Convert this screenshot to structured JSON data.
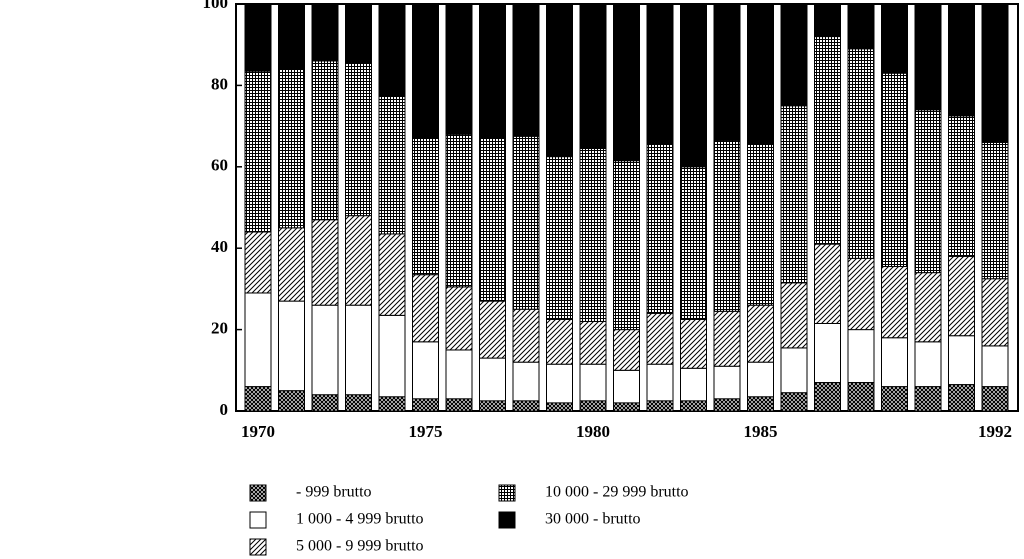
{
  "chart_data": {
    "type": "stacked_bar",
    "categories": [
      "1970",
      null,
      null,
      null,
      null,
      "1975",
      null,
      null,
      null,
      null,
      "1980",
      null,
      null,
      null,
      null,
      "1985",
      null,
      null,
      null,
      null,
      null,
      null,
      "1992"
    ],
    "series": [
      {
        "name": "- 999  brutto",
        "color": "#000000",
        "pattern": "dots",
        "values": [
          6,
          5,
          4,
          4,
          3.5,
          3,
          3,
          2.5,
          2.5,
          2,
          2.5,
          2,
          2.5,
          2.5,
          3,
          3.5,
          4.5,
          7,
          7,
          6,
          6,
          6.5,
          6
        ]
      },
      {
        "name": "1 000 - 4 999  brutto",
        "color": "#ffffff",
        "pattern": "none",
        "values": [
          23,
          22,
          22,
          22,
          20,
          14,
          12,
          10.5,
          9.5,
          9.5,
          9,
          8,
          9,
          8,
          8,
          8.5,
          11,
          14.5,
          13,
          12,
          11,
          12,
          10
        ]
      },
      {
        "name": "5 000 - 9 999  brutto",
        "color": "#000000",
        "pattern": "diagonal",
        "values": [
          15,
          18,
          21,
          22,
          20,
          16.5,
          15.5,
          14,
          13,
          11,
          10.5,
          10,
          12.5,
          12,
          13.5,
          14,
          16,
          19.5,
          17.5,
          17.5,
          17,
          19.5,
          16.5
        ]
      },
      {
        "name": "10 000 - 29 999 brutto",
        "color": "#000000",
        "pattern": "grid",
        "values": [
          39.5,
          39,
          39,
          37.5,
          34,
          33.5,
          37.5,
          40,
          42.5,
          40,
          42.5,
          41.5,
          41.5,
          37.5,
          42,
          39.5,
          43.5,
          51,
          51.5,
          47.5,
          40,
          34.5,
          33.5
        ]
      },
      {
        "name": "30 000 -  brutto",
        "color": "#000000",
        "pattern": "solid",
        "values": [
          16.5,
          16,
          14,
          14.5,
          22.5,
          33,
          32,
          33,
          32.5,
          37.5,
          35.5,
          38.5,
          34.5,
          40,
          33.5,
          34.5,
          25,
          8,
          11,
          17,
          26,
          27.5,
          34
        ]
      }
    ],
    "ylim": [
      0,
      100
    ],
    "yticks": [
      0,
      20,
      40,
      60,
      80,
      100
    ]
  }
}
